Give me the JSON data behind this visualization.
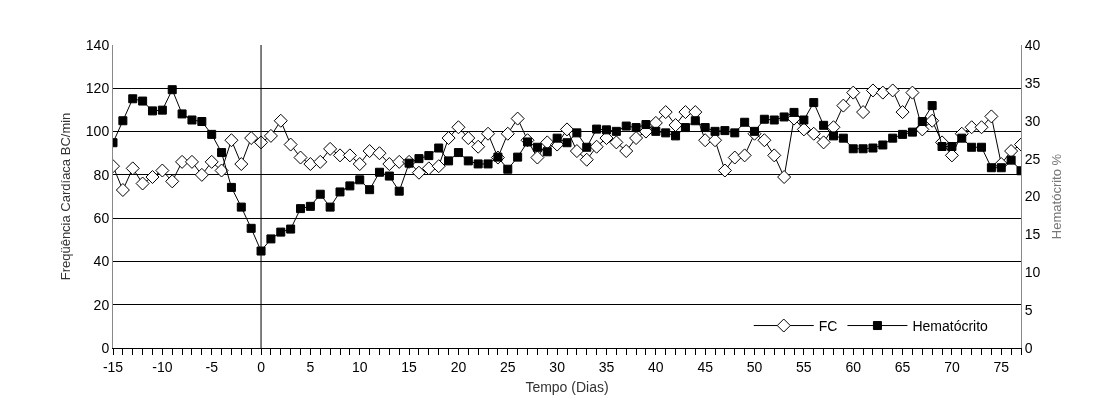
{
  "chart_data": {
    "type": "line",
    "xlabel": "Tempo (Dias)",
    "ylabel": "Freqüência Cardíaca BC/min",
    "y2label": "Hematócrito %",
    "x": [
      -15,
      -14,
      -13,
      -12,
      -11,
      -10,
      -9,
      -8,
      -7,
      -6,
      -5,
      -4,
      -3,
      -2,
      -1,
      0,
      1,
      2,
      3,
      4,
      5,
      6,
      7,
      8,
      9,
      10,
      11,
      12,
      13,
      14,
      15,
      16,
      17,
      18,
      19,
      20,
      21,
      22,
      23,
      24,
      25,
      26,
      27,
      28,
      29,
      30,
      31,
      32,
      33,
      34,
      35,
      36,
      37,
      38,
      39,
      40,
      41,
      42,
      43,
      44,
      45,
      46,
      47,
      48,
      49,
      50,
      51,
      52,
      53,
      54,
      55,
      56,
      57,
      58,
      59,
      60,
      61,
      62,
      63,
      64,
      65,
      66,
      67,
      68,
      69,
      70,
      71,
      72,
      73,
      74,
      75,
      76,
      77
    ],
    "series": [
      {
        "name": "FC",
        "color": "#000000",
        "marker": "diamond",
        "values": [
          84,
          73,
          83,
          76,
          79,
          82,
          77,
          86,
          86,
          80,
          86,
          82,
          96,
          85,
          97,
          95,
          98,
          105,
          94,
          88,
          85,
          86,
          92,
          89,
          89,
          85,
          91,
          90,
          85,
          86,
          86,
          81,
          83,
          84,
          97,
          102,
          97,
          93,
          99,
          88,
          99,
          106,
          96,
          88,
          95,
          94,
          101,
          91,
          87,
          93,
          97,
          95,
          91,
          97,
          100,
          104,
          109,
          103,
          109,
          109,
          96,
          96,
          82,
          88,
          89,
          99,
          96,
          89,
          79,
          106,
          101,
          99,
          95,
          102,
          112,
          118,
          109,
          119,
          118,
          119,
          109,
          118,
          101,
          105,
          95,
          89,
          99,
          102,
          102,
          107,
          85,
          91,
          94
        ]
      },
      {
        "name": "Hematócrito",
        "color": "#000000",
        "marker": "square",
        "axis": "y2",
        "values": [
          27.1,
          30.0,
          32.9,
          32.6,
          31.3,
          31.4,
          34.1,
          30.9,
          30.1,
          29.9,
          28.2,
          25.8,
          21.2,
          18.6,
          15.8,
          12.8,
          14.4,
          15.3,
          15.7,
          18.4,
          18.7,
          20.3,
          18.6,
          20.6,
          21.4,
          22.2,
          20.9,
          23.2,
          22.7,
          20.7,
          24.4,
          25.0,
          25.4,
          26.4,
          24.7,
          25.8,
          24.7,
          24.3,
          24.3,
          25.2,
          23.6,
          25.2,
          27.2,
          26.5,
          25.9,
          27.7,
          27.1,
          28.4,
          26.5,
          28.9,
          28.8,
          28.6,
          29.3,
          29.1,
          29.5,
          28.6,
          28.4,
          28.0,
          29.1,
          30.0,
          29.1,
          28.6,
          28.7,
          28.4,
          29.8,
          28.6,
          30.2,
          30.1,
          30.5,
          31.1,
          30.1,
          32.4,
          29.4,
          28.0,
          27.7,
          26.3,
          26.3,
          26.4,
          26.8,
          27.7,
          28.2,
          28.5,
          29.9,
          32.0,
          26.6,
          26.6,
          27.7,
          26.5,
          26.5,
          23.8,
          23.8,
          24.8,
          23.4
        ]
      }
    ],
    "xlim": [
      -15,
      77
    ],
    "xticks": [
      -15,
      {
        "value": -14,
        "label": null
      },
      {
        "value": -13,
        "label": null
      },
      {
        "value": -12,
        "label": null
      },
      {
        "value": -11,
        "label": null
      },
      -10,
      {
        "value": -9,
        "label": null
      },
      {
        "value": -8,
        "label": null
      },
      {
        "value": -7,
        "label": null
      },
      {
        "value": -6,
        "label": null
      },
      -5,
      {
        "value": -4,
        "label": null
      },
      {
        "value": -3,
        "label": null
      },
      {
        "value": -2,
        "label": null
      },
      {
        "value": -1,
        "label": null
      },
      0,
      {
        "value": 1,
        "label": null
      },
      {
        "value": 2,
        "label": null
      },
      {
        "value": 3,
        "label": null
      },
      {
        "value": 4,
        "label": null
      },
      5,
      {
        "value": 6,
        "label": null
      },
      {
        "value": 7,
        "label": null
      },
      {
        "value": 8,
        "label": null
      },
      {
        "value": 9,
        "label": null
      },
      10,
      {
        "value": 11,
        "label": null
      },
      {
        "value": 12,
        "label": null
      },
      {
        "value": 13,
        "label": null
      },
      {
        "value": 14,
        "label": null
      },
      15,
      {
        "value": 16,
        "label": null
      },
      {
        "value": 17,
        "label": null
      },
      {
        "value": 18,
        "label": null
      },
      {
        "value": 19,
        "label": null
      },
      20,
      {
        "value": 21,
        "label": null
      },
      {
        "value": 22,
        "label": null
      },
      {
        "value": 23,
        "label": null
      },
      {
        "value": 24,
        "label": null
      },
      25,
      {
        "value": 26,
        "label": null
      },
      {
        "value": 27,
        "label": null
      },
      {
        "value": 28,
        "label": null
      },
      {
        "value": 29,
        "label": null
      },
      30,
      {
        "value": 31,
        "label": null
      },
      {
        "value": 32,
        "label": null
      },
      {
        "value": 33,
        "label": null
      },
      {
        "value": 34,
        "label": null
      },
      35,
      {
        "value": 36,
        "label": null
      },
      {
        "value": 37,
        "label": null
      },
      {
        "value": 38,
        "label": null
      },
      {
        "value": 39,
        "label": null
      },
      40,
      {
        "value": 41,
        "label": null
      },
      {
        "value": 42,
        "label": null
      },
      {
        "value": 43,
        "label": null
      },
      {
        "value": 44,
        "label": null
      },
      45,
      {
        "value": 46,
        "label": null
      },
      {
        "value": 47,
        "label": null
      },
      {
        "value": 48,
        "label": null
      },
      {
        "value": 49,
        "label": null
      },
      50,
      {
        "value": 51,
        "label": null
      },
      {
        "value": 52,
        "label": null
      },
      {
        "value": 53,
        "label": null
      },
      {
        "value": 54,
        "label": null
      },
      55,
      {
        "value": 56,
        "label": null
      },
      {
        "value": 57,
        "label": null
      },
      {
        "value": 58,
        "label": null
      },
      {
        "value": 59,
        "label": null
      },
      60,
      {
        "value": 61,
        "label": null
      },
      {
        "value": 62,
        "label": null
      },
      {
        "value": 63,
        "label": null
      },
      {
        "value": 64,
        "label": null
      },
      65,
      {
        "value": 66,
        "label": null
      },
      {
        "value": 67,
        "label": null
      },
      {
        "value": 68,
        "label": null
      },
      {
        "value": 69,
        "label": null
      },
      70,
      {
        "value": 71,
        "label": null
      },
      {
        "value": 72,
        "label": null
      },
      {
        "value": 73,
        "label": null
      },
      {
        "value": 74,
        "label": null
      },
      75,
      {
        "value": 76,
        "label": null
      },
      {
        "value": 77,
        "label": null
      }
    ],
    "ylim": [
      0,
      140
    ],
    "yticks": [
      0,
      20,
      40,
      60,
      80,
      100,
      120,
      140
    ],
    "y2lim": [
      0,
      40
    ],
    "y2ticks": [
      0,
      5,
      10,
      15,
      20,
      25,
      30,
      35,
      40
    ],
    "ref_lines": [
      {
        "axis": "x",
        "value": 0,
        "color": "#000000"
      }
    ],
    "grid": "y",
    "legend": "bottom right",
    "line_style": "solid"
  }
}
